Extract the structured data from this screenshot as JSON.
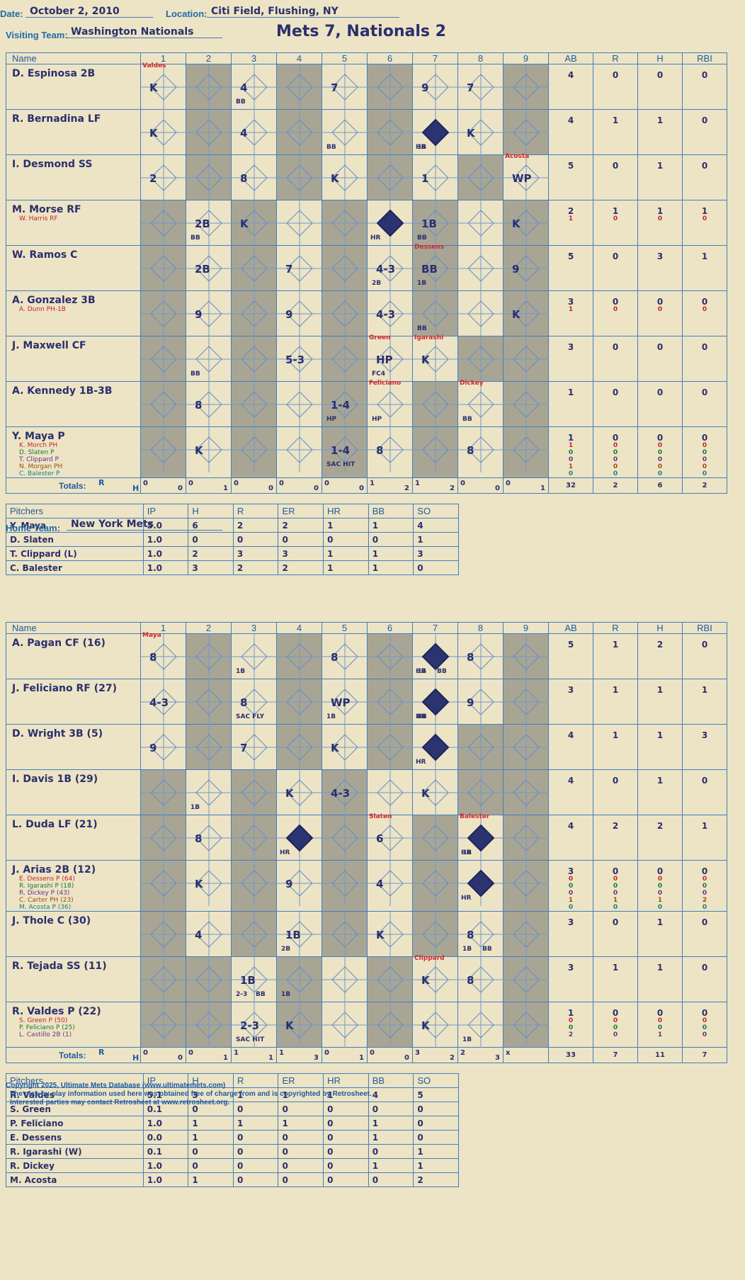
{
  "header": {
    "date_label": "Date:",
    "date": "October 2, 2010",
    "location_label": "Location:",
    "location": "Citi Field, Flushing, NY",
    "visiting_label": "Visiting Team:",
    "visiting_team": "Washington Nationals",
    "home_label": "Home Team:",
    "home_team": "New York Mets",
    "score_title": "Mets 7, Nationals 2"
  },
  "columns": {
    "name": "Name",
    "innings": [
      "1",
      "2",
      "3",
      "4",
      "5",
      "6",
      "7",
      "8",
      "9"
    ],
    "stats": [
      "AB",
      "R",
      "H",
      "RBI"
    ],
    "totals": "Totals:",
    "r": "R",
    "h": "H"
  },
  "watermark": [
    "Ultimate",
    "Mets",
    "Database"
  ],
  "visitors": {
    "rows": [
      {
        "name": "D. Espinosa 2B",
        "stats": [
          "4",
          "0",
          "0",
          "0"
        ],
        "subs": []
      },
      {
        "name": "R. Bernadina LF",
        "stats": [
          "4",
          "1",
          "1",
          "0"
        ],
        "subs": []
      },
      {
        "name": "I. Desmond SS",
        "stats": [
          "5",
          "0",
          "1",
          "0"
        ],
        "subs": []
      },
      {
        "name": "M. Morse RF",
        "stats": [
          "2",
          "1",
          "1",
          "1"
        ],
        "subs": [
          {
            "name": "W. Harris RF",
            "stats": [
              "1",
              "0",
              "0",
              "0"
            ],
            "color": "red"
          }
        ]
      },
      {
        "name": "W. Ramos C",
        "stats": [
          "5",
          "0",
          "3",
          "1"
        ],
        "subs": []
      },
      {
        "name": "A. Gonzalez 3B",
        "stats": [
          "3",
          "0",
          "0",
          "0"
        ],
        "subs": [
          {
            "name": "A. Dunn PH-1B",
            "stats": [
              "1",
              "0",
              "0",
              "0"
            ],
            "color": "red"
          }
        ]
      },
      {
        "name": "J. Maxwell CF",
        "stats": [
          "3",
          "0",
          "0",
          "0"
        ],
        "subs": []
      },
      {
        "name": "A. Kennedy 1B-3B",
        "stats": [
          "1",
          "0",
          "0",
          "0"
        ],
        "subs": []
      },
      {
        "name": "Y. Maya P",
        "stats": [
          "1",
          "0",
          "0",
          "0"
        ],
        "subs": [
          {
            "name": "K. Morch PH",
            "stats": [
              "1",
              "0",
              "0",
              "0"
            ],
            "color": "red"
          },
          {
            "name": "D. Slaten P",
            "stats": [
              "0",
              "0",
              "0",
              "0"
            ],
            "color": "grn"
          },
          {
            "name": "T. Clippard P",
            "stats": [
              "0",
              "0",
              "0",
              "0"
            ],
            "color": "pur"
          },
          {
            "name": "N. Morgan PH",
            "stats": [
              "1",
              "0",
              "0",
              "0"
            ],
            "color": "brn"
          },
          {
            "name": "C. Balester P",
            "stats": [
              "0",
              "0",
              "0",
              "0"
            ],
            "color": "teal"
          }
        ]
      }
    ],
    "inning_totals": [
      [
        "0",
        "0"
      ],
      [
        "0",
        "1"
      ],
      [
        "0",
        "0"
      ],
      [
        "0",
        "0"
      ],
      [
        "0",
        "0"
      ],
      [
        "1",
        "2"
      ],
      [
        "1",
        "2"
      ],
      [
        "0",
        "0"
      ],
      [
        "0",
        "1"
      ]
    ],
    "totals": [
      "32",
      "2",
      "6",
      "2"
    ]
  },
  "visitor_pitching": {
    "headers": [
      "Pitchers",
      "IP",
      "H",
      "R",
      "ER",
      "HR",
      "BB",
      "SO"
    ],
    "rows": [
      [
        "Y. Maya",
        "5.0",
        "6",
        "2",
        "2",
        "1",
        "1",
        "4"
      ],
      [
        "D. Slaten",
        "1.0",
        "0",
        "0",
        "0",
        "0",
        "0",
        "1"
      ],
      [
        "T. Clippard (L)",
        "1.0",
        "2",
        "3",
        "3",
        "1",
        "1",
        "3"
      ],
      [
        "C. Balester",
        "1.0",
        "3",
        "2",
        "2",
        "1",
        "1",
        "0"
      ]
    ]
  },
  "home": {
    "rows": [
      {
        "name": "A. Pagan CF (16)",
        "stats": [
          "5",
          "1",
          "2",
          "0"
        ],
        "subs": []
      },
      {
        "name": "J. Feliciano RF (27)",
        "stats": [
          "3",
          "1",
          "1",
          "1"
        ],
        "subs": []
      },
      {
        "name": "D. Wright 3B (5)",
        "stats": [
          "4",
          "1",
          "1",
          "3"
        ],
        "subs": []
      },
      {
        "name": "I. Davis 1B (29)",
        "stats": [
          "4",
          "0",
          "1",
          "0"
        ],
        "subs": []
      },
      {
        "name": "L. Duda LF (21)",
        "stats": [
          "4",
          "2",
          "2",
          "1"
        ],
        "subs": []
      },
      {
        "name": "J. Arias 2B (12)",
        "stats": [
          "3",
          "0",
          "0",
          "0"
        ],
        "subs": [
          {
            "name": "E. Dessens P (64)",
            "stats": [
              "0",
              "0",
              "0",
              "0"
            ],
            "color": "red"
          },
          {
            "name": "R. Igarashi P (18)",
            "stats": [
              "0",
              "0",
              "0",
              "0"
            ],
            "color": "grn"
          },
          {
            "name": "R. Dickey P (43)",
            "stats": [
              "0",
              "0",
              "0",
              "0"
            ],
            "color": "pur"
          },
          {
            "name": "C. Carter PH (23)",
            "stats": [
              "1",
              "1",
              "1",
              "2"
            ],
            "color": "brn"
          },
          {
            "name": "M. Acosta P (36)",
            "stats": [
              "0",
              "0",
              "0",
              "0"
            ],
            "color": "teal"
          }
        ]
      },
      {
        "name": "J. Thole C (30)",
        "stats": [
          "3",
          "0",
          "1",
          "0"
        ],
        "subs": []
      },
      {
        "name": "R. Tejada SS (11)",
        "stats": [
          "3",
          "1",
          "1",
          "0"
        ],
        "subs": []
      },
      {
        "name": "R. Valdes P (22)",
        "stats": [
          "1",
          "0",
          "0",
          "0"
        ],
        "subs": [
          {
            "name": "S. Green P (50)",
            "stats": [
              "0",
              "0",
              "0",
              "0"
            ],
            "color": "red"
          },
          {
            "name": "P. Feliciano P (25)",
            "stats": [
              "0",
              "0",
              "0",
              "0"
            ],
            "color": "grn"
          },
          {
            "name": "L. Castillo 2B (1)",
            "stats": [
              "2",
              "0",
              "1",
              "0"
            ],
            "color": "pur"
          }
        ]
      }
    ],
    "inning_totals": [
      [
        "0",
        "0"
      ],
      [
        "0",
        "1"
      ],
      [
        "1",
        "1"
      ],
      [
        "1",
        "3"
      ],
      [
        "0",
        "1"
      ],
      [
        "0",
        "0"
      ],
      [
        "3",
        "2"
      ],
      [
        "2",
        "3"
      ],
      [
        "x",
        ""
      ]
    ],
    "totals": [
      "33",
      "7",
      "11",
      "7"
    ]
  },
  "home_pitching": {
    "headers": [
      "Pitchers",
      "IP",
      "H",
      "R",
      "ER",
      "HR",
      "BB",
      "SO"
    ],
    "rows": [
      [
        "R. Valdes",
        "5.1",
        "3",
        "1",
        "1",
        "1",
        "4",
        "5"
      ],
      [
        "S. Green",
        "0.1",
        "0",
        "0",
        "0",
        "0",
        "0",
        "0"
      ],
      [
        "P. Feliciano",
        "1.0",
        "1",
        "1",
        "1",
        "0",
        "1",
        "0"
      ],
      [
        "E. Dessens",
        "0.0",
        "1",
        "0",
        "0",
        "0",
        "1",
        "0"
      ],
      [
        "R. Igarashi (W)",
        "0.1",
        "0",
        "0",
        "0",
        "0",
        "0",
        "1"
      ],
      [
        "R. Dickey",
        "1.0",
        "0",
        "0",
        "0",
        "0",
        "1",
        "1"
      ],
      [
        "M. Acosta",
        "1.0",
        "1",
        "0",
        "0",
        "0",
        "0",
        "2"
      ]
    ]
  },
  "footer": [
    "Copyright 2025, Ultimate Mets Database (www.ultimatemets.com)",
    "The play-by-play information used here was obtained free of charge from and is copyrighted by Retrosheet.",
    "Interested parties may contact Retrosheet at www.retrosheet.org."
  ],
  "visitor_plays": [
    [
      "K|Valdes",
      "",
      "4|BB",
      "",
      "7",
      "",
      "9",
      "7",
      ""
    ],
    [
      "K",
      "",
      "4",
      "",
      "|BB",
      "",
      "HR1B|1B",
      "K",
      ""
    ],
    [
      "2",
      "",
      "8",
      "",
      "K",
      "",
      "1",
      "",
      "WP|Acosta"
    ],
    [
      "",
      "2B|BB",
      "K",
      "",
      "",
      "HR",
      "1B|BB",
      "",
      "K"
    ],
    [
      "",
      "2B",
      "",
      "7",
      "",
      "4-3|2B",
      "BB|1B|Dessens",
      "",
      "9"
    ],
    [
      "",
      "9",
      "",
      "9",
      "",
      "4-3",
      "|BB",
      "",
      "K"
    ],
    [
      "",
      "|BB",
      "",
      "5-3",
      "",
      "HP|FC4|Green",
      "K|Igarashi",
      "",
      ""
    ],
    [
      "",
      "8",
      "",
      "",
      "1-4|HP",
      "|HP|Feliciano",
      "",
      "|BB|Dickey",
      ""
    ],
    [
      "",
      "K",
      "",
      "",
      "1-4|SAC HIT",
      "8",
      "",
      "8",
      ""
    ]
  ],
  "home_plays": [
    [
      "8|Maya",
      "",
      "|1B",
      "",
      "8",
      "",
      "HR|1B|BB",
      "8",
      ""
    ],
    [
      "4-3",
      "",
      "8|SAC FLY",
      "",
      "WP|1B",
      "",
      "HR|BB",
      "9",
      ""
    ],
    [
      "9",
      "",
      "7",
      "",
      "K",
      "",
      "HR",
      "",
      ""
    ],
    [
      "",
      "|1B",
      "",
      "K",
      "4-3",
      "",
      "K",
      "",
      ""
    ],
    [
      "",
      "8",
      "",
      "HR",
      "",
      "6|Slaten",
      "",
      "HR|1B|Balester",
      ""
    ],
    [
      "",
      "K",
      "",
      "9",
      "",
      "4",
      "",
      "HR",
      ""
    ],
    [
      "",
      "4",
      "",
      "1B|2B",
      "",
      "K",
      "",
      "8|1B|BB",
      ""
    ],
    [
      "",
      "",
      "1B|2-3|BB",
      "|1B",
      "",
      "",
      "K|Clippard",
      "8",
      ""
    ],
    [
      "",
      "",
      "2-3|SAC HIT",
      "K",
      "",
      "",
      "K",
      "|1B",
      ""
    ]
  ]
}
